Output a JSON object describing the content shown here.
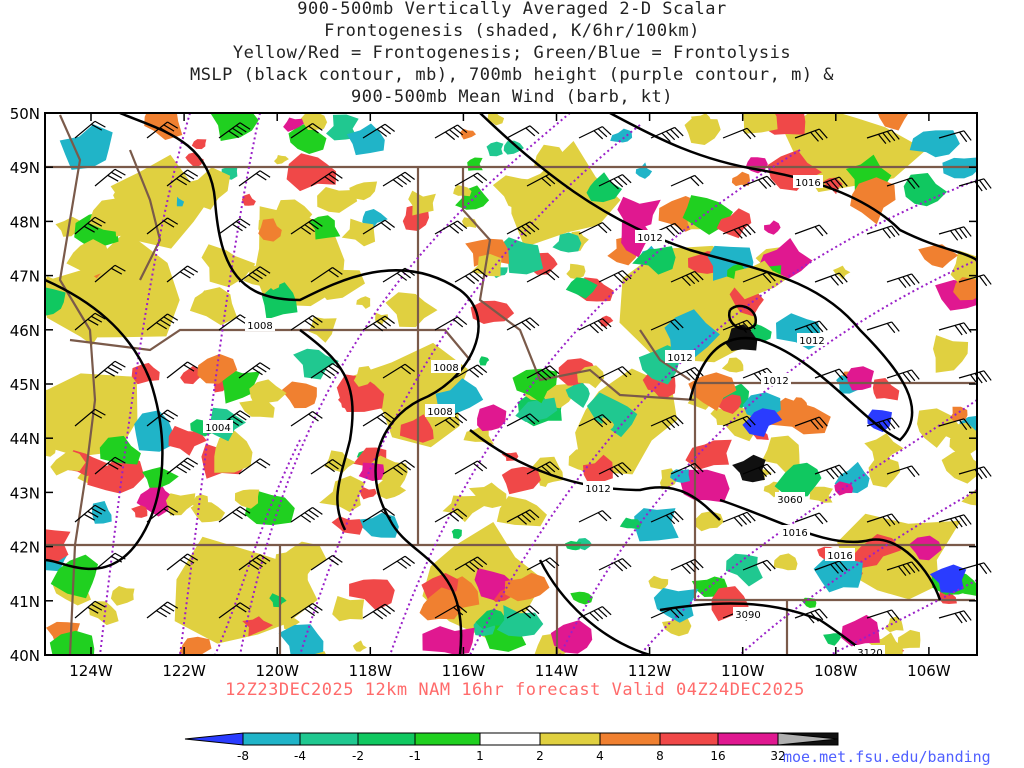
{
  "title_lines": [
    "900-500mb Vertically Averaged 2-D Scalar",
    "Frontogenesis (shaded, K/6hr/100km)",
    "Yellow/Red = Frontogenesis;  Green/Blue = Frontolysis",
    "MSLP (black contour, mb), 700mb height (purple contour, m) &",
    "900-500mb Mean Wind (barb, kt)"
  ],
  "lat_labels": [
    "50N",
    "49N",
    "48N",
    "47N",
    "46N",
    "45N",
    "44N",
    "43N",
    "42N",
    "41N",
    "40N"
  ],
  "lon_labels": [
    "124W",
    "122W",
    "120W",
    "118W",
    "116W",
    "114W",
    "112W",
    "110W",
    "108W",
    "106W"
  ],
  "footer": "12Z23DEC2025 12km NAM 16hr forecast Valid 04Z24DEC2025",
  "url": "moe.met.fsu.edu/banding",
  "colorbar": {
    "labels": [
      "-8",
      "-4",
      "-2",
      "-1",
      "1",
      "2",
      "4",
      "8",
      "16",
      "32"
    ],
    "colors": [
      "#2a3cff",
      "#20b4c8",
      "#20c890",
      "#10c860",
      "#20d020",
      "#ffffff",
      "#e0d040",
      "#f08030",
      "#f04848",
      "#e01890",
      "#101010",
      "#b0b0b0"
    ]
  },
  "pressure_labels": [
    "1016",
    "1012",
    "1012",
    "1012",
    "1012",
    "1008",
    "1008",
    "1008",
    "1004",
    "1016",
    "1016",
    "1012"
  ],
  "height_labels": [
    "3060",
    "3090",
    "3120"
  ],
  "contour_colors": {
    "mslp": "#000000",
    "height": "#9a20c8",
    "borders": "#7a5a4a"
  }
}
